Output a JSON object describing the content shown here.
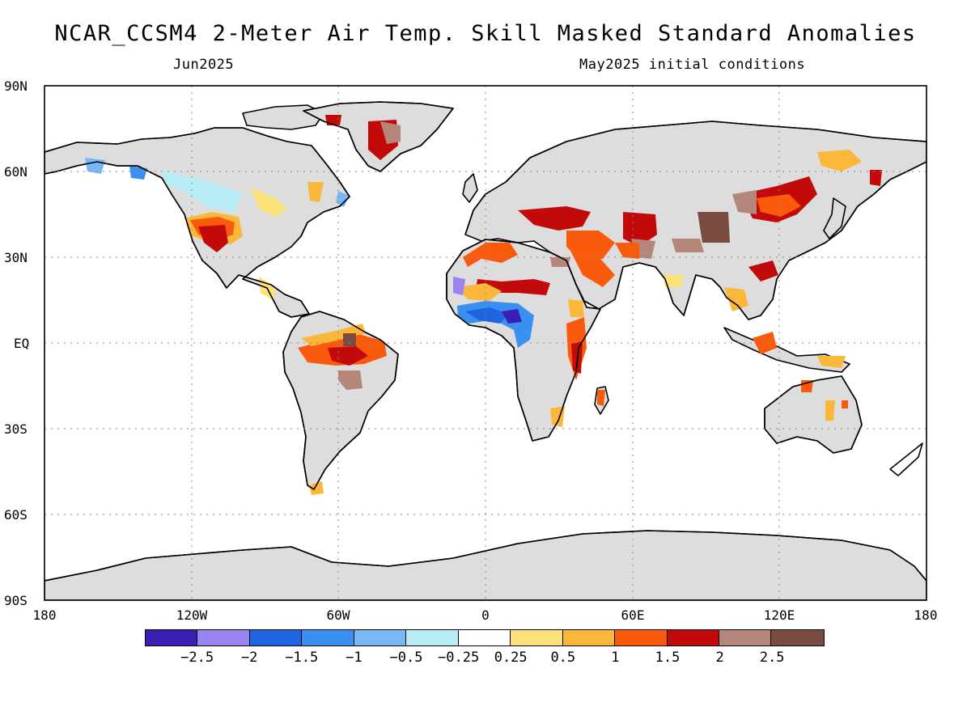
{
  "title": "NCAR_CCSM4 2-Meter Air Temp. Skill Masked Standard Anomalies",
  "subtitle_left": "Jun2025",
  "subtitle_right": "May2025 initial conditions",
  "lat_labels": [
    "90N",
    "60N",
    "30N",
    "EQ",
    "30S",
    "60S",
    "90S"
  ],
  "lon_labels": [
    "180",
    "120W",
    "60W",
    "0",
    "60E",
    "120E",
    "180"
  ],
  "colorbar": {
    "colors": [
      "#3b1fb5",
      "#9b83f2",
      "#1f64e0",
      "#3a90f0",
      "#78b8f5",
      "#b7ecf7",
      "#ffffff",
      "#fde27a",
      "#fbb73a",
      "#fa5a0c",
      "#c30a0a",
      "#b5867a",
      "#7a4b3f"
    ],
    "labels": [
      "−2.5",
      "−2",
      "−1.5",
      "−1",
      "−0.5",
      "−0.25",
      "0.25",
      "0.5",
      "1",
      "1.5",
      "2",
      "2.5"
    ]
  },
  "land_mask_color": "#dddddd"
}
